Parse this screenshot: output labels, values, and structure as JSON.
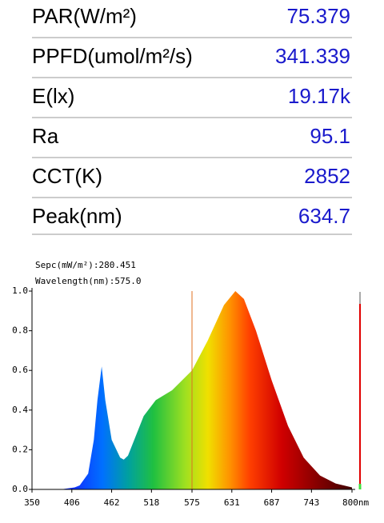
{
  "table": {
    "rows": [
      [
        "PAR(W/m²)",
        "75.379"
      ],
      [
        "PPFD(umol/m²/s)",
        "341.339"
      ],
      [
        "E(lx)",
        "19.17k"
      ],
      [
        "Ra",
        "95.1"
      ],
      [
        "CCT(K)",
        "2852"
      ],
      [
        "Peak(nm)",
        "634.7"
      ]
    ]
  },
  "chart_data": {
    "type": "area",
    "annotations": [
      "Sepc(mW/m²):280.451",
      "Wavelength(nm):575.0"
    ],
    "x": [
      350,
      370,
      390,
      400,
      410,
      417,
      429,
      437,
      442,
      448,
      453,
      462,
      474,
      479,
      485,
      496,
      507,
      524,
      547,
      575,
      597,
      620,
      636,
      648,
      665,
      687,
      710,
      732,
      755,
      777,
      800
    ],
    "values": [
      0,
      0,
      0,
      0.005,
      0.01,
      0.02,
      0.08,
      0.25,
      0.45,
      0.62,
      0.45,
      0.25,
      0.16,
      0.15,
      0.17,
      0.27,
      0.37,
      0.45,
      0.5,
      0.6,
      0.75,
      0.93,
      1.0,
      0.96,
      0.8,
      0.55,
      0.32,
      0.16,
      0.07,
      0.03,
      0.01
    ],
    "cursor_x": 575,
    "xlim": [
      350,
      800
    ],
    "xticks": [
      350,
      406,
      462,
      518,
      575,
      631,
      687,
      743,
      {
        "value": 800,
        "label": "800nm"
      }
    ],
    "ylim": [
      0,
      1
    ],
    "yticks": [
      {
        "value": 0,
        "label": "0.0"
      },
      {
        "value": 0.2,
        "label": "0.2"
      },
      {
        "value": 0.4,
        "label": "0.4"
      },
      {
        "value": 0.6,
        "label": "0.6"
      },
      {
        "value": 0.8,
        "label": "0.8"
      },
      {
        "value": 1,
        "label": "1.0"
      }
    ]
  }
}
